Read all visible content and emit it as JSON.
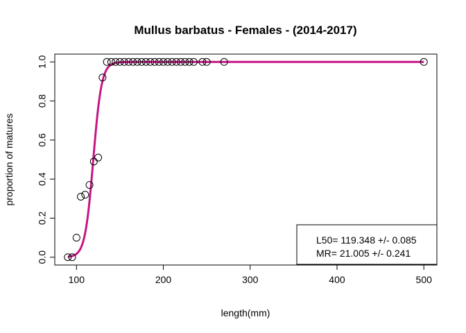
{
  "chart_data": {
    "type": "scatter",
    "title": "Mullus barbatus - Females - (2014-2017)",
    "xlabel": "length(mm)",
    "ylabel": "proportion of matures",
    "xlim": [
      75,
      515
    ],
    "ylim": [
      -0.04,
      1.04
    ],
    "x_ticks": [
      100,
      200,
      300,
      400,
      500
    ],
    "y_ticks": [
      0.0,
      0.2,
      0.4,
      0.6,
      0.8,
      1.0
    ],
    "x_tick_labels": [
      "100",
      "200",
      "300",
      "400",
      "500"
    ],
    "y_tick_labels": [
      "0.0",
      "0.2",
      "0.4",
      "0.6",
      "0.8",
      "1.0"
    ],
    "grid": false,
    "legend_placement": "bottom-right",
    "curve_color": "#c71585",
    "series": [
      {
        "type": "scatter",
        "points": [
          [
            90,
            0.0
          ],
          [
            95,
            0.0
          ],
          [
            100,
            0.1
          ],
          [
            105,
            0.31
          ],
          [
            110,
            0.32
          ],
          [
            115,
            0.37
          ],
          [
            120,
            0.49
          ],
          [
            125,
            0.51
          ],
          [
            130,
            0.92
          ],
          [
            135,
            1.0
          ],
          [
            140,
            1.0
          ],
          [
            145,
            1.0
          ],
          [
            150,
            1.0
          ],
          [
            155,
            1.0
          ],
          [
            160,
            1.0
          ],
          [
            165,
            1.0
          ],
          [
            170,
            1.0
          ],
          [
            175,
            1.0
          ],
          [
            180,
            1.0
          ],
          [
            185,
            1.0
          ],
          [
            190,
            1.0
          ],
          [
            195,
            1.0
          ],
          [
            200,
            1.0
          ],
          [
            205,
            1.0
          ],
          [
            210,
            1.0
          ],
          [
            215,
            1.0
          ],
          [
            220,
            1.0
          ],
          [
            225,
            1.0
          ],
          [
            230,
            1.0
          ],
          [
            235,
            1.0
          ],
          [
            245,
            1.0
          ],
          [
            250,
            1.0
          ],
          [
            270,
            1.0
          ],
          [
            500,
            1.0
          ]
        ]
      },
      {
        "type": "line",
        "model": "logistic",
        "L50": 119.348,
        "MR": 21.005,
        "x_range": [
          90,
          500
        ]
      }
    ],
    "legend": {
      "lines": [
        "L50=  119.348 +/- 0.085",
        "MR=  21.005 +/- 0.241"
      ]
    }
  }
}
